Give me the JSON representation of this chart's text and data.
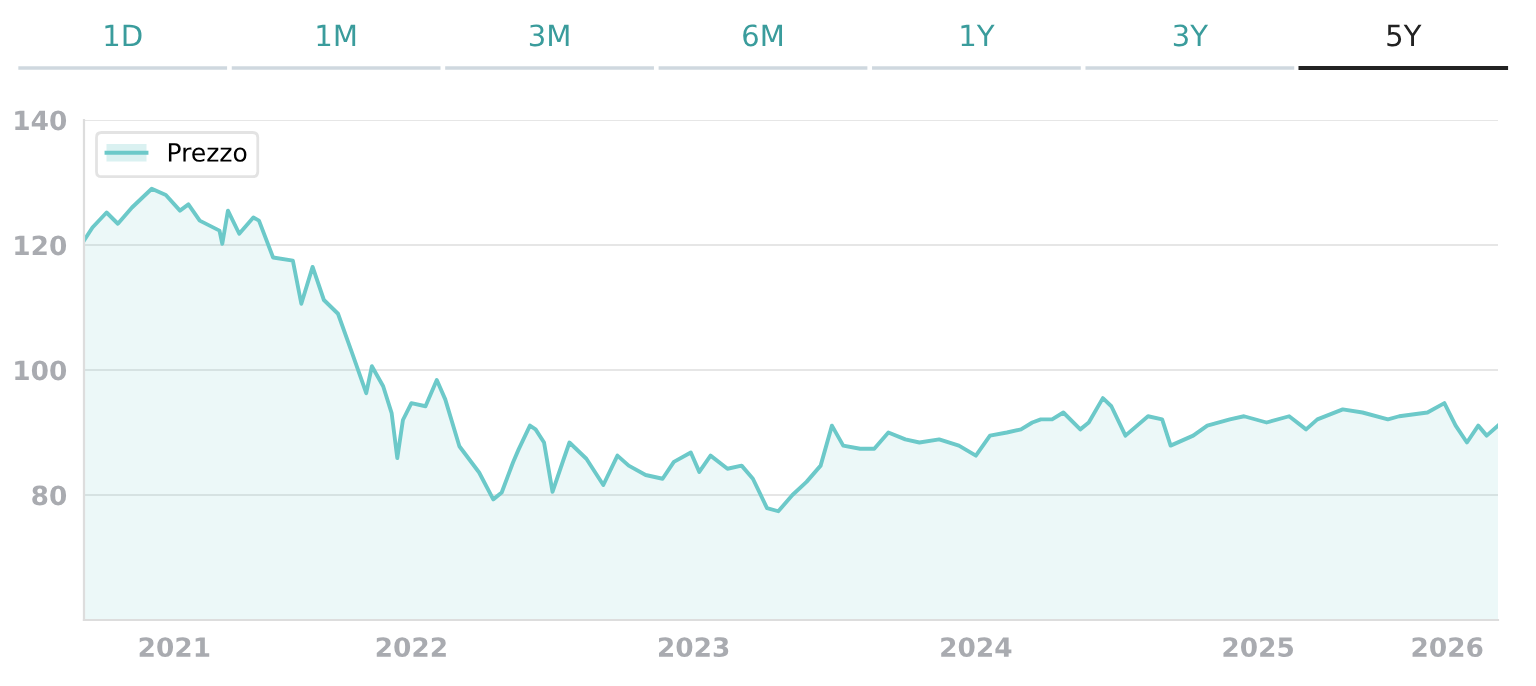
{
  "chart_data": {
    "type": "area",
    "annotations": [
      "1D",
      "1M",
      "3M",
      "6M",
      "1Y",
      "3Y",
      "5Y"
    ],
    "series": [
      {
        "name": "Prezzo",
        "color": "#6cc9c9",
        "x": [
          2020.84,
          2020.87,
          2020.92,
          2020.96,
          2021.01,
          2021.08,
          2021.13,
          2021.18,
          2021.21,
          2021.25,
          2021.32,
          2021.33,
          2021.35,
          2021.39,
          2021.44,
          2021.46,
          2021.51,
          2021.58,
          2021.61,
          2021.65,
          2021.69,
          2021.74,
          2021.79,
          2021.84,
          2021.86,
          2021.9,
          2021.93,
          2021.95,
          2021.97,
          2022.0,
          2022.05,
          2022.09,
          2022.12,
          2022.17,
          2022.24,
          2022.29,
          2022.32,
          2022.36,
          2022.38,
          2022.42,
          2022.44,
          2022.47,
          2022.5,
          2022.54,
          2022.56,
          2022.62,
          2022.68,
          2022.73,
          2022.77,
          2022.83,
          2022.89,
          2022.93,
          2022.99,
          2023.02,
          2023.06,
          2023.12,
          2023.17,
          2023.21,
          2023.26,
          2023.3,
          2023.35,
          2023.4,
          2023.45,
          2023.49,
          2023.53,
          2023.59,
          2023.64,
          2023.69,
          2023.75,
          2023.8,
          2023.87,
          2023.94,
          2024.0,
          2024.05,
          2024.11,
          2024.16,
          2024.2,
          2024.23,
          2024.27,
          2024.31,
          2024.37,
          2024.4,
          2024.45,
          2024.48,
          2024.53,
          2024.61,
          2024.66,
          2024.69,
          2024.77,
          2024.82,
          2024.9,
          2024.95,
          2025.03,
          2025.11,
          2025.17,
          2025.21,
          2025.3,
          2025.37,
          2025.46,
          2025.5,
          2025.6,
          2025.66,
          2025.7,
          2025.74,
          2025.78,
          2025.81,
          2025.85
        ],
        "values": [
          120.7,
          122.8,
          125.2,
          123.4,
          126,
          129,
          128,
          125.5,
          126.5,
          123.9,
          122.3,
          120.2,
          125.5,
          121.8,
          124.4,
          123.9,
          118,
          117.5,
          110.6,
          116.5,
          111.2,
          109,
          102.7,
          96.3,
          100.6,
          97.4,
          93.1,
          85.9,
          92,
          94.7,
          94.2,
          98.4,
          95.3,
          87.8,
          83.6,
          79.3,
          80.4,
          85.2,
          87.3,
          91.1,
          90.5,
          88.4,
          80.5,
          85.8,
          88.4,
          85.8,
          81.6,
          86.3,
          84.7,
          83.2,
          82.6,
          85.3,
          86.8,
          83.7,
          86.3,
          84.2,
          84.7,
          82.6,
          77.9,
          77.4,
          80,
          82.1,
          84.7,
          91.1,
          87.9,
          87.4,
          87.4,
          90,
          88.9,
          88.4,
          88.9,
          87.9,
          86.3,
          89.5,
          90,
          90.5,
          91.6,
          92.1,
          92.1,
          93.2,
          90.5,
          91.6,
          95.5,
          94.2,
          89.5,
          92.6,
          92.1,
          87.9,
          89.5,
          91.1,
          92.1,
          92.6,
          91.6,
          92.6,
          90.5,
          92.1,
          93.7,
          93.2,
          92.1,
          92.6,
          93.2,
          94.7,
          91.1,
          88.4,
          91.1,
          89.5,
          91.1
        ]
      }
    ],
    "xlim": [
      2020.84,
      2025.85
    ],
    "xticks": [
      {
        "value": 2021.16,
        "label": "2021"
      },
      {
        "value": 2022,
        "label": "2022"
      },
      {
        "value": 2023,
        "label": "2023"
      },
      {
        "value": 2024,
        "label": "2024"
      },
      {
        "value": 2025,
        "label": "2025"
      },
      {
        "value": 2025.67,
        "label": "2026"
      }
    ],
    "ylim": [
      60,
      140
    ],
    "yticks": [
      80,
      100,
      120,
      140
    ],
    "grid": "y",
    "legend": "top left"
  }
}
